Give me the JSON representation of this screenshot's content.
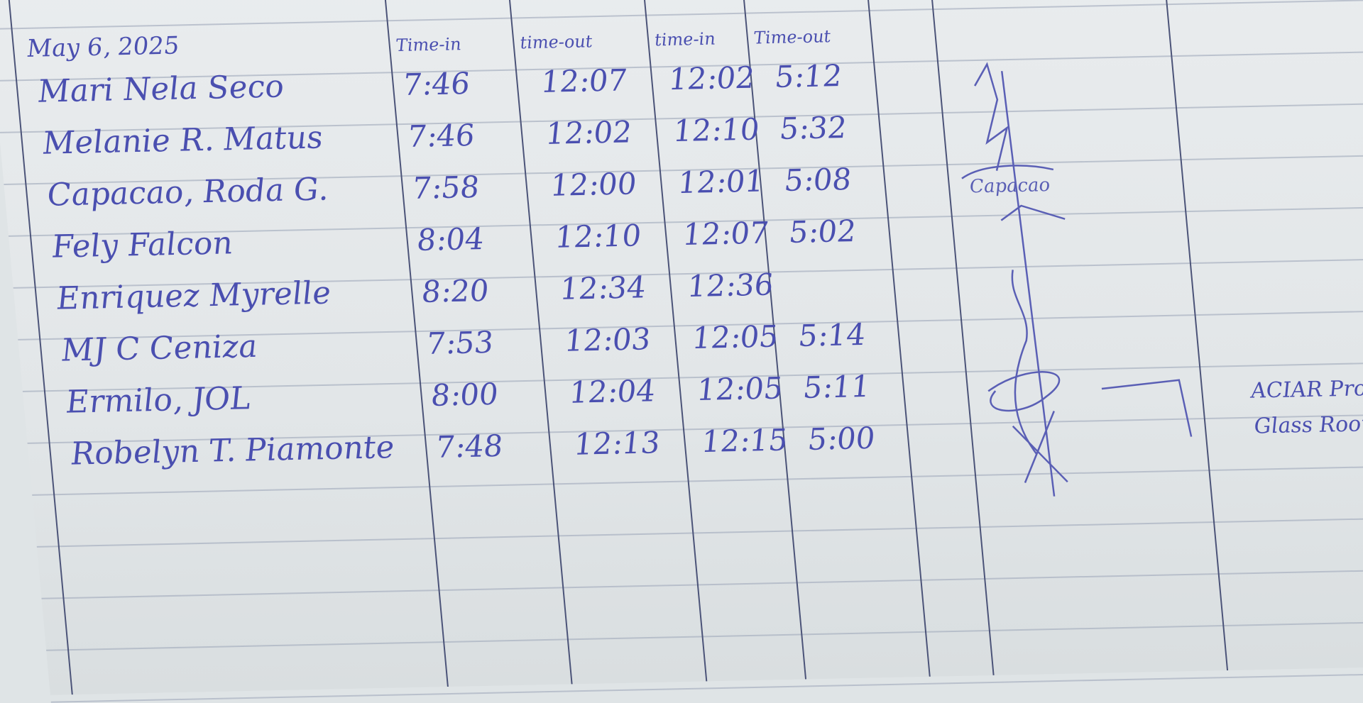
{
  "date": "May 6, 2025",
  "headers": [
    "Time-in",
    "time-out",
    "time-in",
    "Time-out"
  ],
  "rows": [
    {
      "name": "Mari Nela Seco",
      "times": [
        "7:46",
        "12:07",
        "12:02",
        "5:12"
      ]
    },
    {
      "name": "Melanie R. Matus",
      "times": [
        "7:46",
        "12:02",
        "12:10",
        "5:32"
      ]
    },
    {
      "name": "Capacao, Roda G.",
      "times": [
        "7:58",
        "12:00",
        "12:01",
        "5:08"
      ]
    },
    {
      "name": "Fely Falcon",
      "times": [
        "8:04",
        "12:10",
        "12:07",
        "5:02"
      ]
    },
    {
      "name": "Enriquez Myrelle",
      "times": [
        "8:20",
        "12:34",
        "12:36",
        ""
      ]
    },
    {
      "name": "MJ C Ceniza",
      "times": [
        "7:53",
        "12:03",
        "12:05",
        "5:14"
      ]
    },
    {
      "name": "Ermilo, JOL",
      "times": [
        "8:00",
        "12:04",
        "12:05",
        "5:11"
      ]
    },
    {
      "name": "Robelyn T. Piamonte",
      "times": [
        "7:48",
        "12:13",
        "12:15",
        "5:00"
      ]
    }
  ],
  "remarks": [
    "ACIAR Proje",
    "Glass Room."
  ],
  "signature_text": "Capacao",
  "ink_color": "#4a4fb0"
}
